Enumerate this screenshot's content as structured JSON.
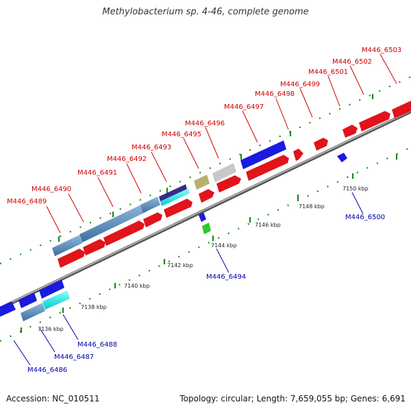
{
  "title": "Methylobacterium sp. 4-46, complete genome",
  "footer": {
    "accession": "Accession: NC_010511",
    "summary": "Topology: circular; Length: 7,659,055 bp; Genes: 6,691"
  },
  "colors": {
    "forward_gene": "#e0141a",
    "reverse_gene": "#1a1ae0",
    "forward_label": "#cc0000",
    "reverse_label": "#0000aa",
    "backbone": "#8a8a8a",
    "tick": "#1a8a1a"
  },
  "kbp_ticks": [
    "7136 kbp",
    "7138 kbp",
    "7140 kbp",
    "7142 kbp",
    "7144 kbp",
    "7146 kbp",
    "7148 kbp",
    "7150 kbp"
  ],
  "forward_gene_labels": [
    "M446_6489",
    "M446_6490",
    "M446_6491",
    "M446_6492",
    "M446_6493",
    "M446_6495",
    "M446_6496",
    "M446_6497",
    "M446_6498",
    "M446_6499",
    "M446_6501",
    "M446_6502",
    "M446_6503"
  ],
  "reverse_gene_labels": [
    "M446_6486",
    "M446_6487",
    "M446_6488",
    "M446_6494",
    "M446_6500"
  ]
}
